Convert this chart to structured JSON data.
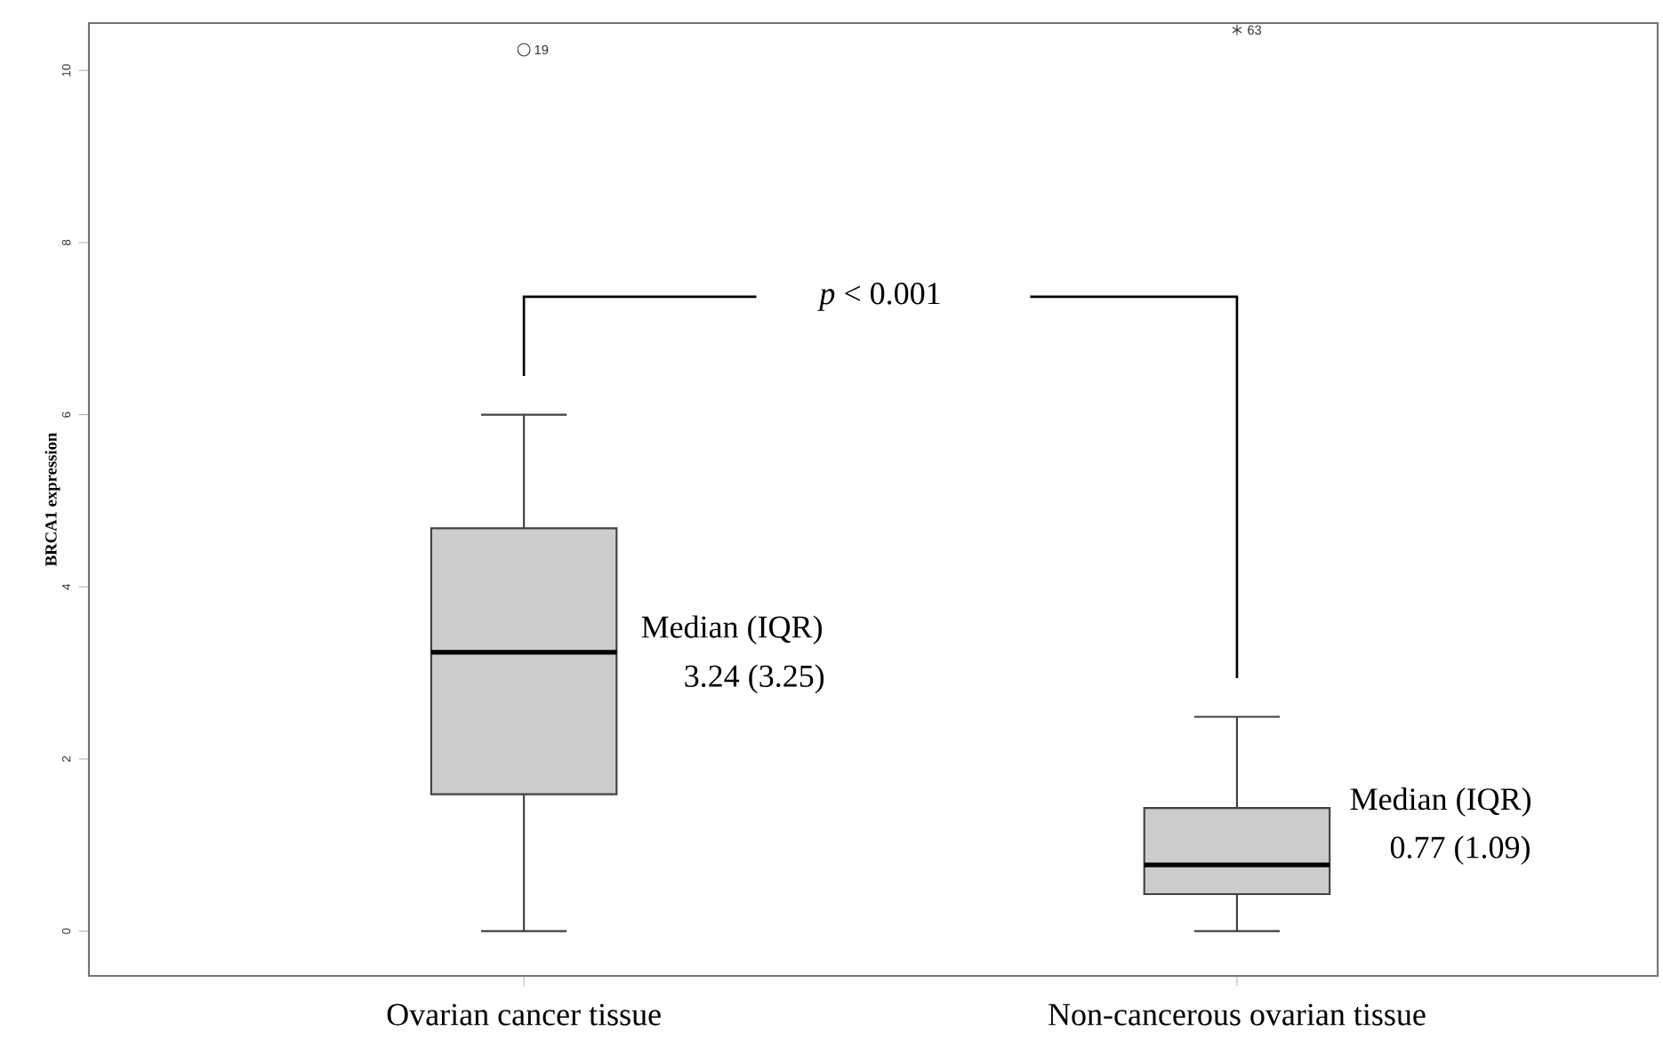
{
  "chart_data": {
    "type": "box",
    "ylabel": "BRCA1 expression",
    "categories": [
      "Ovarian cancer tissue",
      "Non-cancerous ovarian tissue"
    ],
    "boxes": [
      {
        "low": 0,
        "q1": 1.59,
        "median": 3.24,
        "q3": 4.68,
        "high": 6.0,
        "outliers": [
          10.24
        ]
      },
      {
        "low": 0,
        "q1": 0.43,
        "median": 0.77,
        "q3": 1.43,
        "high": 2.49,
        "outliers": [
          10.47
        ]
      }
    ],
    "color": "#cccccc",
    "ylim": [
      -0.52,
      10.55
    ],
    "yticks": [
      0,
      2,
      4,
      6,
      8,
      10
    ],
    "annotations": [
      "*p* < 0.001",
      "Median (IQR)",
      "3.24 (3.25)",
      "Median (IQR)",
      "0.77 (1.09)",
      "19",
      "63"
    ],
    "grid": false
  }
}
